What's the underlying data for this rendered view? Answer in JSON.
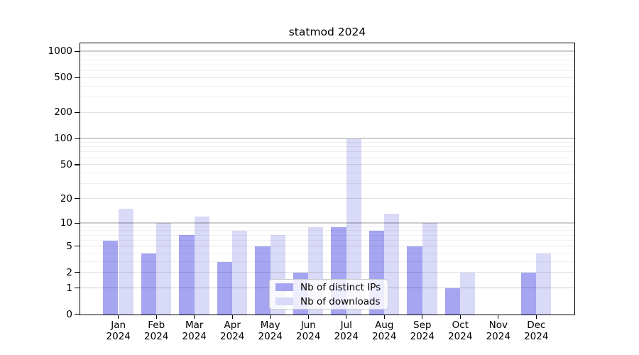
{
  "chart_data": {
    "type": "bar",
    "title": "statmod 2024",
    "categories": [
      "Jan",
      "Feb",
      "Mar",
      "Apr",
      "May",
      "Jun",
      "Jul",
      "Aug",
      "Sep",
      "Oct",
      "Nov",
      "Dec"
    ],
    "category_sublabel": "2024",
    "series": [
      {
        "name": "Nb of distinct IPs",
        "color": "#a5a5f2",
        "values": [
          6,
          4,
          7,
          3,
          5,
          2,
          9,
          8,
          5,
          1,
          0,
          2
        ]
      },
      {
        "name": "Nb of downloads",
        "color": "#d9d9f8",
        "values": [
          15,
          10,
          12,
          8,
          7,
          9,
          100,
          13,
          10,
          2,
          0,
          4
        ]
      }
    ],
    "yscale": "log1p",
    "yticks": [
      0,
      1,
      2,
      5,
      10,
      20,
      50,
      100,
      200,
      500,
      1000
    ],
    "ylim": [
      0,
      1230
    ],
    "grid": true,
    "legend_position": "inside-bottom-center",
    "colors": {
      "axis": "#000000",
      "background": "#ffffff",
      "grid_major": "rgba(0,0,0,0.20)",
      "grid_mid": "rgba(0,0,0,0.11)",
      "grid_minor": "rgba(0,0,0,0.055)"
    }
  }
}
